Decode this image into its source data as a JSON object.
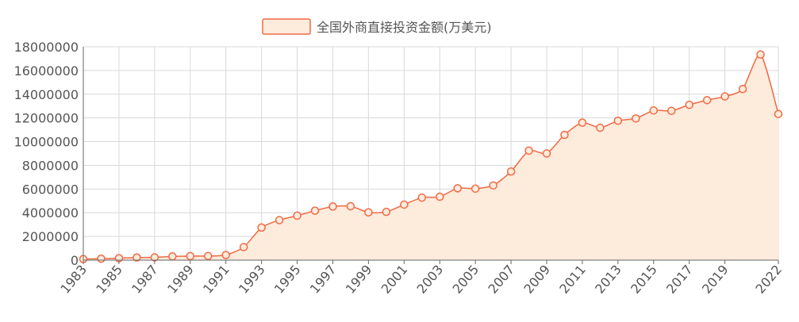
{
  "colors": {
    "line": "#F06A45",
    "area": "#FDEBDC",
    "grid": "#D9D9D9",
    "axis": "#666666",
    "text": "#555555"
  },
  "chart_data": {
    "type": "area",
    "legend": {
      "label": "全国外商直接投资金额(万美元)",
      "placement": "top-center"
    },
    "x": [
      1983,
      1984,
      1985,
      1986,
      1987,
      1988,
      1989,
      1990,
      1991,
      1992,
      1993,
      1994,
      1995,
      1996,
      1997,
      1998,
      1999,
      2000,
      2001,
      2002,
      2003,
      2004,
      2005,
      2006,
      2007,
      2008,
      2009,
      2010,
      2011,
      2012,
      2013,
      2014,
      2015,
      2016,
      2017,
      2018,
      2019,
      2020,
      2021,
      2022
    ],
    "x_tick_labels": [
      "1983",
      "1985",
      "1987",
      "1989",
      "1991",
      "1993",
      "1995",
      "1997",
      "1999",
      "2001",
      "2003",
      "2005",
      "2007",
      "2009",
      "2011",
      "2013",
      "2015",
      "2017",
      "2019",
      "2022"
    ],
    "series": [
      {
        "name": "全国外商直接投资金额(万美元)",
        "values": [
          91600,
          125800,
          166100,
          224400,
          231400,
          319400,
          339200,
          348700,
          436600,
          1100800,
          2751500,
          3376700,
          3752100,
          4172600,
          4525700,
          4546300,
          4031900,
          4071500,
          4687800,
          5274300,
          5350500,
          6063000,
          6032500,
          6302100,
          7476800,
          9239500,
          9003300,
          10573500,
          11601100,
          11171600,
          11758600,
          11956200,
          12626700,
          12600100,
          13103500,
          13496600,
          13813500,
          14436900,
          17348300,
          12326100
        ]
      }
    ],
    "y_tick_labels": [
      "0",
      "2000000",
      "4000000",
      "6000000",
      "8000000",
      "10000000",
      "12000000",
      "14000000",
      "16000000",
      "18000000"
    ],
    "ylim": [
      0,
      18000000
    ],
    "grid": true
  }
}
